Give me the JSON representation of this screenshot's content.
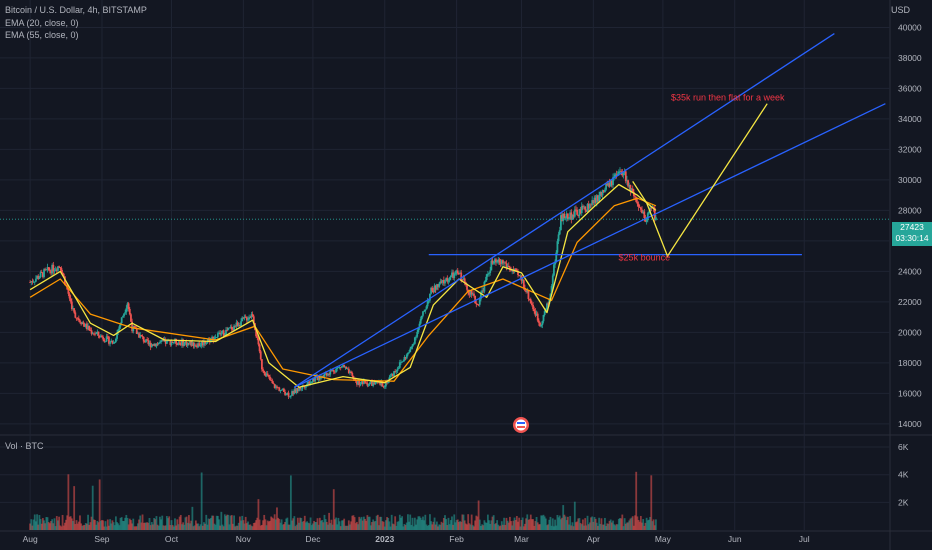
{
  "header": {
    "symbol_line": "Bitcoin / U.S. Dollar, 4h, BITSTAMP",
    "ema20": "EMA (20, close, 0)",
    "ema55": "EMA (55, close, 0)",
    "currency": "USD",
    "volume_label": "Vol · BTC"
  },
  "last_price": {
    "value": "27423",
    "countdown": "03:30:14"
  },
  "colors": {
    "background": "#131722",
    "grid": "#1f2433",
    "up": "#26a69a",
    "down": "#ef5350",
    "ema20": "#f5e642",
    "ema55": "#ff9800",
    "trendline": "#2962ff",
    "projection": "#f5e642",
    "annotation": "#f23645"
  },
  "chart_data": {
    "type": "candlestick",
    "symbol": "BTCUSD",
    "interval": "4h",
    "y_ticks": [
      14000,
      16000,
      18000,
      20000,
      22000,
      24000,
      26000,
      28000,
      30000,
      32000,
      34000,
      36000,
      38000,
      40000
    ],
    "y_tick_labels": [
      "14000",
      "16000",
      "18000",
      "20000",
      "22000",
      "24000",
      "26000",
      "28000",
      "30000",
      "32000",
      "34000",
      "36000",
      "38000",
      "40000"
    ],
    "ylim": [
      13400,
      41800
    ],
    "x_tick_labels": [
      "Aug",
      "Sep",
      "Oct",
      "Nov",
      "Dec",
      "2023",
      "Feb",
      "Mar",
      "Apr",
      "May",
      "Jun",
      "Jul"
    ],
    "volume_ticks": [
      "2K",
      "4K",
      "6K"
    ],
    "volume_max": 6800,
    "price_path": [
      [
        "2022-08-01",
        23300
      ],
      [
        "2022-08-08",
        24000
      ],
      [
        "2022-08-14",
        24400
      ],
      [
        "2022-08-20",
        21200
      ],
      [
        "2022-08-27",
        20100
      ],
      [
        "2022-09-06",
        19300
      ],
      [
        "2022-09-12",
        22000
      ],
      [
        "2022-09-14",
        20300
      ],
      [
        "2022-09-21",
        19200
      ],
      [
        "2022-10-01",
        19400
      ],
      [
        "2022-10-13",
        19200
      ],
      [
        "2022-10-25",
        20100
      ],
      [
        "2022-11-05",
        21200
      ],
      [
        "2022-11-09",
        17700
      ],
      [
        "2022-11-14",
        16500
      ],
      [
        "2022-11-21",
        15900
      ],
      [
        "2022-12-01",
        16900
      ],
      [
        "2022-12-14",
        17800
      ],
      [
        "2022-12-20",
        16700
      ],
      [
        "2023-01-01",
        16600
      ],
      [
        "2023-01-12",
        18800
      ],
      [
        "2023-01-21",
        22700
      ],
      [
        "2023-01-29",
        23600
      ],
      [
        "2023-02-02",
        23900
      ],
      [
        "2023-02-10",
        21800
      ],
      [
        "2023-02-16",
        24500
      ],
      [
        "2023-02-21",
        24600
      ],
      [
        "2023-03-01",
        23500
      ],
      [
        "2023-03-09",
        20500
      ],
      [
        "2023-03-13",
        22100
      ],
      [
        "2023-03-18",
        27500
      ],
      [
        "2023-03-25",
        27800
      ],
      [
        "2023-04-01",
        28500
      ],
      [
        "2023-04-11",
        30200
      ],
      [
        "2023-04-14",
        30500
      ],
      [
        "2023-04-20",
        28200
      ],
      [
        "2023-04-24",
        27400
      ],
      [
        "2023-04-26",
        28400
      ],
      [
        "2023-04-28",
        27423
      ]
    ],
    "ema20_path": [
      [
        "2022-08-01",
        22800
      ],
      [
        "2022-08-14",
        24000
      ],
      [
        "2022-08-27",
        20600
      ],
      [
        "2022-09-06",
        19800
      ],
      [
        "2022-09-14",
        20600
      ],
      [
        "2022-09-28",
        19500
      ],
      [
        "2022-10-20",
        19400
      ],
      [
        "2022-11-05",
        20800
      ],
      [
        "2022-11-12",
        18000
      ],
      [
        "2022-11-25",
        16400
      ],
      [
        "2022-12-14",
        17100
      ],
      [
        "2023-01-01",
        16700
      ],
      [
        "2023-01-12",
        17700
      ],
      [
        "2023-01-22",
        21800
      ],
      [
        "2023-02-02",
        23500
      ],
      [
        "2023-02-14",
        22300
      ],
      [
        "2023-02-21",
        24300
      ],
      [
        "2023-03-01",
        23900
      ],
      [
        "2023-03-12",
        21300
      ],
      [
        "2023-03-21",
        26600
      ],
      [
        "2023-04-01",
        28200
      ],
      [
        "2023-04-12",
        29700
      ],
      [
        "2023-04-20",
        29000
      ],
      [
        "2023-04-28",
        28000
      ]
    ],
    "ema55_path": [
      [
        "2022-08-01",
        22300
      ],
      [
        "2022-08-14",
        23500
      ],
      [
        "2022-08-27",
        21200
      ],
      [
        "2022-09-14",
        20300
      ],
      [
        "2022-10-20",
        19500
      ],
      [
        "2022-11-06",
        20400
      ],
      [
        "2022-11-18",
        17600
      ],
      [
        "2022-12-10",
        16900
      ],
      [
        "2023-01-05",
        16800
      ],
      [
        "2023-01-20",
        19800
      ],
      [
        "2023-02-06",
        22700
      ],
      [
        "2023-02-21",
        23500
      ],
      [
        "2023-03-08",
        22500
      ],
      [
        "2023-03-14",
        22100
      ],
      [
        "2023-03-25",
        25900
      ],
      [
        "2023-04-10",
        28300
      ],
      [
        "2023-04-20",
        28800
      ],
      [
        "2023-04-28",
        28300
      ]
    ],
    "trendlines": [
      {
        "name": "upper",
        "from": [
          "2022-11-23",
          16400
        ],
        "to": [
          "2023-07-14",
          39600
        ]
      },
      {
        "name": "lower",
        "from": [
          "2022-11-23",
          16400
        ],
        "to": [
          "2023-08-05",
          35000
        ]
      },
      {
        "name": "horizontal",
        "from": [
          "2023-01-20",
          25100
        ],
        "to": [
          "2023-06-30",
          25100
        ]
      }
    ],
    "projection": [
      [
        "2023-04-18",
        29900
      ],
      [
        "2023-04-24",
        28500
      ],
      [
        "2023-05-03",
        25000
      ],
      [
        "2023-06-15",
        35000
      ]
    ],
    "annotations": [
      {
        "text": "$35k run then flat for a week",
        "x": "2023-05-29",
        "y": 35200
      },
      {
        "text": "$25k bounce",
        "x": "2023-04-23",
        "y": 24700
      }
    ],
    "last_price": 27423
  }
}
